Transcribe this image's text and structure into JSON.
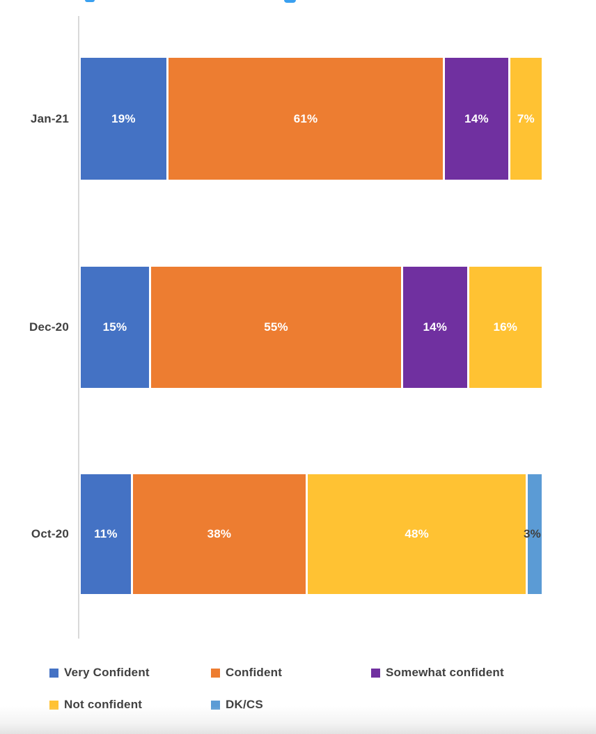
{
  "page": {
    "background": "#FFFFFF",
    "title_fragment_color": "#3AA0F0",
    "axis_line_color": "#D9D9D9"
  },
  "chart_data": {
    "type": "bar",
    "orientation": "horizontal",
    "stacked": true,
    "title": "",
    "xlabel": "",
    "ylabel": "",
    "xlim": [
      0,
      100
    ],
    "grid": false,
    "legend_position": "bottom-left, two rows",
    "categories": [
      "Jan-21",
      "Dec-20",
      "Oct-20"
    ],
    "series": [
      {
        "name": "Very Confident",
        "color": "#4472C4",
        "values": [
          19,
          15,
          11
        ]
      },
      {
        "name": "Confident",
        "color": "#ED7D31",
        "values": [
          61,
          55,
          38
        ]
      },
      {
        "name": "Somewhat confident",
        "color": "#7030A0",
        "values": [
          14,
          14,
          0
        ]
      },
      {
        "name": "Not confident",
        "color": "#FFC233",
        "values": [
          7,
          16,
          48
        ]
      },
      {
        "name": "DK/CS",
        "color": "#5B9BD5",
        "values": [
          0,
          0,
          3
        ]
      }
    ],
    "data_labels": {
      "format": "{value}%",
      "inside_color": "#FFFFFF",
      "outside_color": "#404040",
      "outside_threshold_pct": 5
    },
    "category_label_color": "#404040",
    "legend_label_color": "#404040"
  }
}
